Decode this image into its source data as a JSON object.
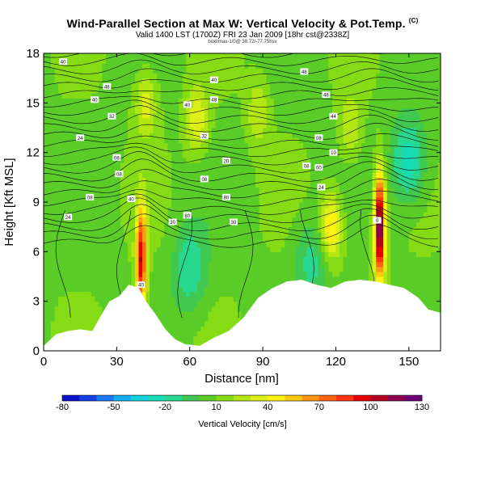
{
  "header": {
    "title": "Wind-Parallel Section at Max W: Vertical Velocity & Pot.Temp.",
    "title_mark": "(C)",
    "subtitle": "Valid 1400 LST (1700Z) FRI 23 Jan 2009 [18hr cst@2338Z]",
    "credit": "boxl/max-1/0@ 38.72/-77.75hsv"
  },
  "chart_data": {
    "type": "heatmap",
    "title": "Wind-Parallel Section at Max W: Vertical Velocity & Pot.Temp.",
    "xlabel": "Distance [nm]",
    "ylabel": "Height [Kft MSL]",
    "xlim": [
      0,
      163
    ],
    "ylim": [
      0,
      18
    ],
    "xticks": [
      0,
      30,
      60,
      90,
      120,
      150
    ],
    "yticks": [
      0,
      3,
      6,
      9,
      12,
      15,
      18
    ],
    "grid": false,
    "colorbar": {
      "label": "Vertical Velocity [cm/s]",
      "ticks": [
        -80,
        -50,
        -20,
        10,
        40,
        70,
        100,
        130
      ],
      "range": [
        -80,
        130
      ],
      "colors": [
        "#0a10c8",
        "#1440e6",
        "#1a78f0",
        "#10b0f0",
        "#14d2dc",
        "#18dcb4",
        "#28d890",
        "#40c850",
        "#5acc28",
        "#86dc14",
        "#b4e614",
        "#dcf018",
        "#fff014",
        "#ffc814",
        "#ff9614",
        "#ff6414",
        "#ff3214",
        "#e60000",
        "#b4001e",
        "#8c0050",
        "#6e0078"
      ]
    },
    "terrain_kft": [
      [
        0,
        0.3
      ],
      [
        5,
        1.0
      ],
      [
        10,
        1.2
      ],
      [
        15,
        1.3
      ],
      [
        20,
        1.2
      ],
      [
        23,
        2.0
      ],
      [
        27,
        3.0
      ],
      [
        31,
        3.3
      ],
      [
        35,
        4.0
      ],
      [
        39,
        3.8
      ],
      [
        42,
        3.0
      ],
      [
        46,
        2.2
      ],
      [
        50,
        1.3
      ],
      [
        54,
        0.7
      ],
      [
        58,
        0.4
      ],
      [
        64,
        0.3
      ],
      [
        70,
        0.8
      ],
      [
        76,
        1.2
      ],
      [
        82,
        2.0
      ],
      [
        88,
        3.2
      ],
      [
        94,
        3.8
      ],
      [
        100,
        4.2
      ],
      [
        106,
        4.3
      ],
      [
        112,
        4.0
      ],
      [
        118,
        3.8
      ],
      [
        124,
        4.2
      ],
      [
        130,
        4.3
      ],
      [
        136,
        4.2
      ],
      [
        142,
        4.0
      ],
      [
        148,
        3.8
      ],
      [
        154,
        3.2
      ],
      [
        158,
        2.5
      ],
      [
        163,
        2.3
      ]
    ],
    "updraft_cores": [
      {
        "x": 40,
        "y": 5.5,
        "peak_cms": 100
      },
      {
        "x": 138,
        "y": 7.5,
        "peak_cms": 130
      },
      {
        "x": 118,
        "y": 7.5,
        "peak_cms": 55
      },
      {
        "x": 63,
        "y": 14.0,
        "peak_cms": 40
      },
      {
        "x": 42,
        "y": 15.0,
        "peak_cms": 35
      },
      {
        "x": 126,
        "y": 13.5,
        "peak_cms": 30
      },
      {
        "x": 88,
        "y": 14.5,
        "peak_cms": 30
      }
    ],
    "downdraft_cores": [
      {
        "x": 150,
        "y": 11.5,
        "peak_cms": -30
      },
      {
        "x": 60,
        "y": 5.0,
        "peak_cms": -20
      },
      {
        "x": 110,
        "y": 5.5,
        "peak_cms": -15
      }
    ],
    "theta_contour_labels": [
      {
        "x": 8,
        "y": 17.5,
        "text": "40"
      },
      {
        "x": 26,
        "y": 16.0,
        "text": "48"
      },
      {
        "x": 21,
        "y": 15.2,
        "text": "40"
      },
      {
        "x": 28,
        "y": 14.2,
        "text": "32"
      },
      {
        "x": 15,
        "y": 12.9,
        "text": "24"
      },
      {
        "x": 30,
        "y": 11.7,
        "text": "08"
      },
      {
        "x": 31,
        "y": 10.7,
        "text": "08"
      },
      {
        "x": 19,
        "y": 9.3,
        "text": "08"
      },
      {
        "x": 10,
        "y": 8.1,
        "text": "24"
      },
      {
        "x": 36,
        "y": 9.2,
        "text": "40"
      },
      {
        "x": 40,
        "y": 4.0,
        "text": "40"
      },
      {
        "x": 70,
        "y": 16.4,
        "text": "40"
      },
      {
        "x": 70,
        "y": 15.2,
        "text": "48"
      },
      {
        "x": 59,
        "y": 14.9,
        "text": "40"
      },
      {
        "x": 66,
        "y": 13.0,
        "text": "32"
      },
      {
        "x": 75,
        "y": 11.5,
        "text": "20"
      },
      {
        "x": 66,
        "y": 10.4,
        "text": "08"
      },
      {
        "x": 75,
        "y": 9.3,
        "text": "80"
      },
      {
        "x": 59,
        "y": 8.2,
        "text": "80"
      },
      {
        "x": 53,
        "y": 7.8,
        "text": "30"
      },
      {
        "x": 78,
        "y": 7.8,
        "text": "30"
      },
      {
        "x": 107,
        "y": 16.9,
        "text": "48"
      },
      {
        "x": 116,
        "y": 15.5,
        "text": "48"
      },
      {
        "x": 119,
        "y": 14.2,
        "text": "44"
      },
      {
        "x": 113,
        "y": 12.9,
        "text": "08"
      },
      {
        "x": 119,
        "y": 12.0,
        "text": "10"
      },
      {
        "x": 108,
        "y": 11.2,
        "text": "08"
      },
      {
        "x": 113,
        "y": 11.1,
        "text": "00"
      },
      {
        "x": 114,
        "y": 9.9,
        "text": "24"
      },
      {
        "x": 137,
        "y": 7.9,
        "text": "0"
      }
    ]
  }
}
